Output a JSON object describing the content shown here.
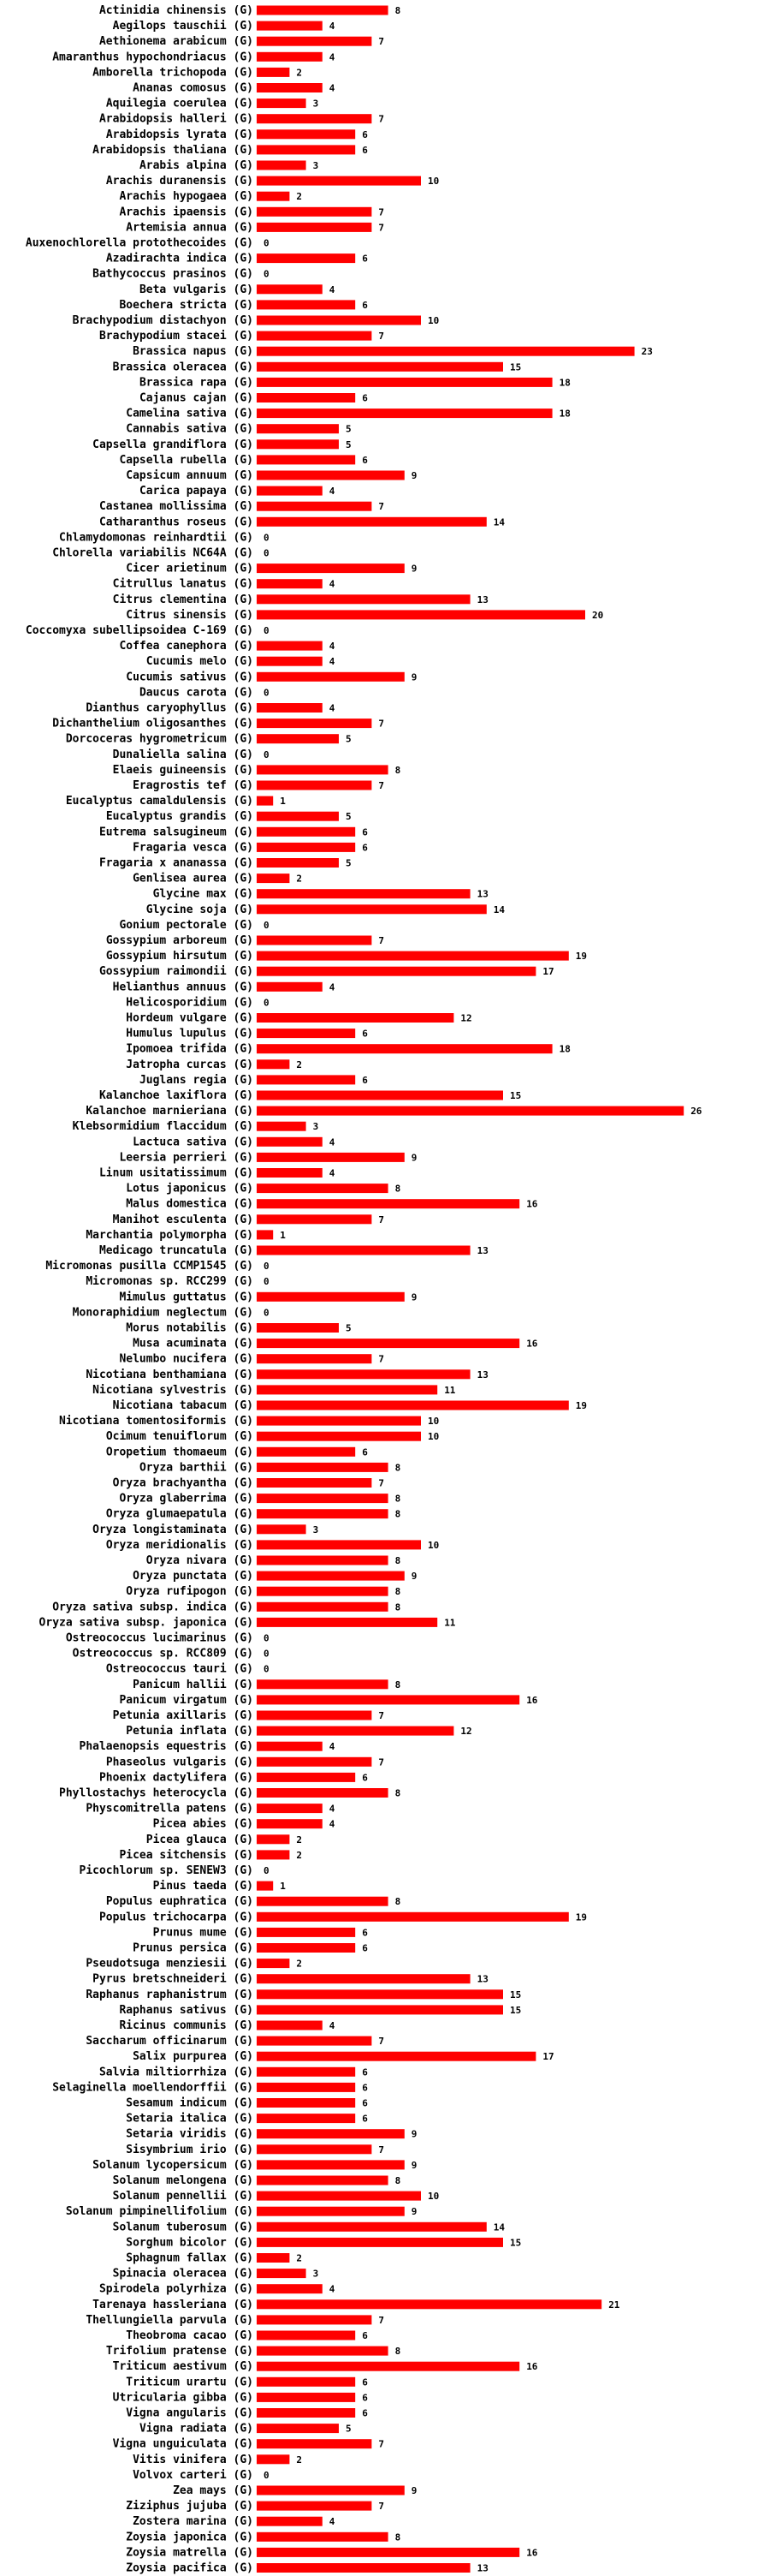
{
  "chart_data": {
    "type": "bar",
    "orientation": "horizontal",
    "title": "",
    "xlabel": "",
    "ylabel": "",
    "bar_color": "#ff0000",
    "group_tag": "(G)",
    "categories": [
      "Actinidia chinensis",
      "Aegilops tauschii",
      "Aethionema arabicum",
      "Amaranthus hypochondriacus",
      "Amborella trichopoda",
      "Ananas comosus",
      "Aquilegia coerulea",
      "Arabidopsis halleri",
      "Arabidopsis lyrata",
      "Arabidopsis thaliana",
      "Arabis alpina",
      "Arachis duranensis",
      "Arachis hypogaea",
      "Arachis ipaensis",
      "Artemisia annua",
      "Auxenochlorella protothecoides",
      "Azadirachta indica",
      "Bathycoccus prasinos",
      "Beta vulgaris",
      "Boechera stricta",
      "Brachypodium distachyon",
      "Brachypodium stacei",
      "Brassica napus",
      "Brassica oleracea",
      "Brassica rapa",
      "Cajanus cajan",
      "Camelina sativa",
      "Cannabis sativa",
      "Capsella grandiflora",
      "Capsella rubella",
      "Capsicum annuum",
      "Carica papaya",
      "Castanea mollissima",
      "Catharanthus roseus",
      "Chlamydomonas reinhardtii",
      "Chlorella variabilis NC64A",
      "Cicer arietinum",
      "Citrullus lanatus",
      "Citrus clementina",
      "Citrus sinensis",
      "Coccomyxa subellipsoidea C-169",
      "Coffea canephora",
      "Cucumis melo",
      "Cucumis sativus",
      "Daucus carota",
      "Dianthus caryophyllus",
      "Dichanthelium oligosanthes",
      "Dorcoceras hygrometricum",
      "Dunaliella salina",
      "Elaeis guineensis",
      "Eragrostis tef",
      "Eucalyptus camaldulensis",
      "Eucalyptus grandis",
      "Eutrema salsugineum",
      "Fragaria vesca",
      "Fragaria x ananassa",
      "Genlisea aurea",
      "Glycine max",
      "Glycine soja",
      "Gonium pectorale",
      "Gossypium arboreum",
      "Gossypium hirsutum",
      "Gossypium raimondii",
      "Helianthus annuus",
      "Helicosporidium",
      "Hordeum vulgare",
      "Humulus lupulus",
      "Ipomoea trifida",
      "Jatropha curcas",
      "Juglans regia",
      "Kalanchoe laxiflora",
      "Kalanchoe marnieriana",
      "Klebsormidium flaccidum",
      "Lactuca sativa",
      "Leersia perrieri",
      "Linum usitatissimum",
      "Lotus japonicus",
      "Malus domestica",
      "Manihot esculenta",
      "Marchantia polymorpha",
      "Medicago truncatula",
      "Micromonas pusilla CCMP1545",
      "Micromonas sp. RCC299",
      "Mimulus guttatus",
      "Monoraphidium neglectum",
      "Morus notabilis",
      "Musa acuminata",
      "Nelumbo nucifera",
      "Nicotiana benthamiana",
      "Nicotiana sylvestris",
      "Nicotiana tabacum",
      "Nicotiana tomentosiformis",
      "Ocimum tenuiflorum",
      "Oropetium thomaeum",
      "Oryza barthii",
      "Oryza brachyantha",
      "Oryza glaberrima",
      "Oryza glumaepatula",
      "Oryza longistaminata",
      "Oryza meridionalis",
      "Oryza nivara",
      "Oryza punctata",
      "Oryza rufipogon",
      "Oryza sativa subsp. indica",
      "Oryza sativa subsp. japonica",
      "Ostreococcus lucimarinus",
      "Ostreococcus sp. RCC809",
      "Ostreococcus tauri",
      "Panicum hallii",
      "Panicum virgatum",
      "Petunia axillaris",
      "Petunia inflata",
      "Phalaenopsis equestris",
      "Phaseolus vulgaris",
      "Phoenix dactylifera",
      "Phyllostachys heterocycla",
      "Physcomitrella patens",
      "Picea abies",
      "Picea glauca",
      "Picea sitchensis",
      "Picochlorum sp. SENEW3",
      "Pinus taeda",
      "Populus euphratica",
      "Populus trichocarpa",
      "Prunus mume",
      "Prunus persica",
      "Pseudotsuga menziesii",
      "Pyrus bretschneideri",
      "Raphanus raphanistrum",
      "Raphanus sativus",
      "Ricinus communis",
      "Saccharum officinarum",
      "Salix purpurea",
      "Salvia miltiorrhiza",
      "Selaginella moellendorffii",
      "Sesamum indicum",
      "Setaria italica",
      "Setaria viridis",
      "Sisymbrium irio",
      "Solanum lycopersicum",
      "Solanum melongena",
      "Solanum pennellii",
      "Solanum pimpinellifolium",
      "Solanum tuberosum",
      "Sorghum bicolor",
      "Sphagnum fallax",
      "Spinacia oleracea",
      "Spirodela polyrhiza",
      "Tarenaya hassleriana",
      "Thellungiella parvula",
      "Theobroma cacao",
      "Trifolium pratense",
      "Triticum aestivum",
      "Triticum urartu",
      "Utricularia gibba",
      "Vigna angularis",
      "Vigna radiata",
      "Vigna unguiculata",
      "Vitis vinifera",
      "Volvox carteri",
      "Zea mays",
      "Ziziphus jujuba",
      "Zostera marina",
      "Zoysia japonica",
      "Zoysia matrella",
      "Zoysia pacifica"
    ],
    "values": [
      8,
      4,
      7,
      4,
      2,
      4,
      3,
      7,
      6,
      6,
      3,
      10,
      2,
      7,
      7,
      0,
      6,
      0,
      4,
      6,
      10,
      7,
      23,
      15,
      18,
      6,
      18,
      5,
      5,
      6,
      9,
      4,
      7,
      14,
      0,
      0,
      9,
      4,
      13,
      20,
      0,
      4,
      4,
      9,
      0,
      4,
      7,
      5,
      0,
      8,
      7,
      1,
      5,
      6,
      6,
      5,
      2,
      13,
      14,
      0,
      7,
      19,
      17,
      4,
      0,
      12,
      6,
      18,
      2,
      6,
      15,
      26,
      3,
      4,
      9,
      4,
      8,
      16,
      7,
      1,
      13,
      0,
      0,
      9,
      0,
      5,
      16,
      7,
      13,
      11,
      19,
      10,
      10,
      6,
      8,
      7,
      8,
      8,
      3,
      10,
      8,
      9,
      8,
      8,
      11,
      0,
      0,
      0,
      8,
      16,
      7,
      12,
      4,
      7,
      6,
      8,
      4,
      4,
      2,
      2,
      0,
      1,
      8,
      19,
      6,
      6,
      2,
      13,
      15,
      15,
      4,
      7,
      17,
      6,
      6,
      6,
      6,
      9,
      7,
      9,
      8,
      10,
      9,
      14,
      15,
      2,
      3,
      4,
      21,
      7,
      6,
      8,
      16,
      6,
      6,
      6,
      5,
      7,
      2,
      0,
      9,
      7,
      4,
      8,
      16,
      13
    ],
    "xlim": [
      0,
      26
    ]
  }
}
